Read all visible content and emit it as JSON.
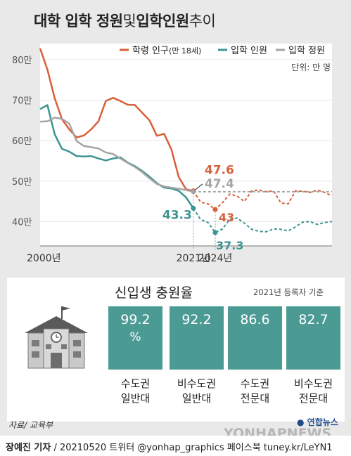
{
  "title": {
    "bold1": "대학 입학 정원",
    "light": " 및 ",
    "bold2": "입학인원",
    "light2": " 추이"
  },
  "chart_data": {
    "type": "line",
    "title": "대학 입학 정원 및 입학인원 추이",
    "unit_label": "단위: 만 명",
    "ylim": [
      34,
      84
    ],
    "y_ticks": [
      40,
      50,
      60,
      70,
      80
    ],
    "y_tick_labels": [
      "40만",
      "50만",
      "60만",
      "70만",
      "80만"
    ],
    "x_range": [
      2000,
      2040
    ],
    "x_tick_labels": [
      {
        "x": 2000,
        "label": "2000년"
      },
      {
        "x": 2021,
        "label": "2021년"
      },
      {
        "x": 2024,
        "label": "2024년"
      }
    ],
    "projection_start": 2021,
    "legend_position": "top",
    "series": [
      {
        "name": "학령 인구",
        "name_note": "(만 18세)",
        "color": "#d8603a",
        "x": [
          2000,
          2001,
          2002,
          2003,
          2004,
          2005,
          2006,
          2007,
          2008,
          2009,
          2010,
          2011,
          2012,
          2013,
          2014,
          2015,
          2016,
          2017,
          2018,
          2019,
          2020,
          2021,
          2022,
          2023,
          2024,
          2025,
          2026,
          2027,
          2028,
          2029,
          2030,
          2031,
          2032,
          2033,
          2034,
          2035,
          2036,
          2037,
          2038,
          2039,
          2040
        ],
        "values": [
          82.8,
          77.6,
          70.5,
          65.3,
          62.8,
          60.8,
          61.3,
          62.8,
          64.8,
          69.8,
          70.6,
          69.8,
          68.9,
          68.8,
          66.9,
          65.0,
          61.2,
          61.7,
          57.8,
          51.0,
          48.0,
          47.6,
          44.8,
          44.4,
          43.0,
          44.7,
          46.8,
          46.3,
          45.0,
          47.6,
          47.8,
          47.4,
          47.6,
          44.6,
          44.4,
          47.6,
          47.5,
          47.2,
          47.8,
          47.2,
          46.4
        ],
        "projected_from": 2021
      },
      {
        "name": "입학 인원",
        "color": "#3d9591",
        "x": [
          2000,
          2001,
          2002,
          2003,
          2004,
          2005,
          2006,
          2007,
          2008,
          2009,
          2010,
          2011,
          2012,
          2013,
          2014,
          2015,
          2016,
          2017,
          2018,
          2019,
          2020,
          2021,
          2022,
          2023,
          2024,
          2025,
          2026,
          2027,
          2028,
          2029,
          2030,
          2031,
          2032,
          2033,
          2034,
          2035,
          2036,
          2037,
          2038,
          2039,
          2040
        ],
        "values": [
          67.8,
          68.8,
          61.6,
          58.0,
          57.3,
          56.2,
          56.1,
          56.2,
          55.6,
          55.1,
          55.6,
          55.9,
          54.6,
          53.7,
          52.5,
          51.1,
          49.5,
          48.4,
          48.2,
          47.6,
          46.0,
          43.3,
          40.5,
          39.8,
          37.3,
          38.2,
          40.6,
          40.9,
          39.6,
          38.1,
          37.6,
          37.5,
          38.2,
          38.1,
          37.7,
          38.7,
          39.9,
          40.0,
          39.3,
          39.8,
          40.0
        ],
        "projected_from": 2021
      },
      {
        "name": "입학 정원",
        "color": "#a5a5a5",
        "x": [
          2000,
          2001,
          2002,
          2003,
          2004,
          2005,
          2006,
          2007,
          2008,
          2009,
          2010,
          2011,
          2012,
          2013,
          2014,
          2015,
          2016,
          2017,
          2018,
          2019,
          2020,
          2021,
          2022,
          2023,
          2024,
          2025,
          2026,
          2027,
          2028,
          2029,
          2030,
          2031,
          2032,
          2033,
          2034,
          2035,
          2036,
          2037,
          2038,
          2039,
          2040
        ],
        "values": [
          64.7,
          64.8,
          65.7,
          65.4,
          64.2,
          59.9,
          58.7,
          58.4,
          58.1,
          57.1,
          56.7,
          55.6,
          54.5,
          53.5,
          52.2,
          50.7,
          49.3,
          48.7,
          48.4,
          48.1,
          47.8,
          47.4,
          47.4,
          47.4,
          47.4,
          47.4,
          47.4,
          47.4,
          47.4,
          47.4,
          47.4,
          47.4,
          47.4,
          47.4,
          47.4,
          47.4,
          47.4,
          47.4,
          47.4,
          47.4,
          47.4
        ],
        "projected_from": 2021
      }
    ],
    "annotations": [
      {
        "series": 0,
        "x": 2021,
        "label": "47.6"
      },
      {
        "series": 2,
        "x": 2021,
        "label": "47.4"
      },
      {
        "series": 1,
        "x": 2021,
        "label": "43.3"
      },
      {
        "series": 0,
        "x": 2024,
        "label": "43"
      },
      {
        "series": 1,
        "x": 2024,
        "label": "37.3"
      }
    ]
  },
  "fill_rate": {
    "title": "신입생 충원율",
    "note": "2021년 등록자 기준",
    "bars": [
      {
        "value": "99.2",
        "unit": "%",
        "label_line1": "수도권",
        "label_line2": "일반대"
      },
      {
        "value": "92.2",
        "unit": "",
        "label_line1": "비수도권",
        "label_line2": "일반대"
      },
      {
        "value": "86.6",
        "unit": "",
        "label_line1": "수도권",
        "label_line2": "전문대"
      },
      {
        "value": "82.7",
        "unit": "",
        "label_line1": "비수도권",
        "label_line2": "전문대"
      }
    ],
    "bar_color": "#4b9b94",
    "icon": "school-building-icon"
  },
  "source": "자료/ 교육부",
  "logo": "연합뉴스",
  "watermark": "YONHAPNEWS",
  "footer": {
    "author": "장예진 기자",
    "rest": " / 20210520 트위터 @yonhap_graphics  페이스북 tuney.kr/LeYN1"
  }
}
